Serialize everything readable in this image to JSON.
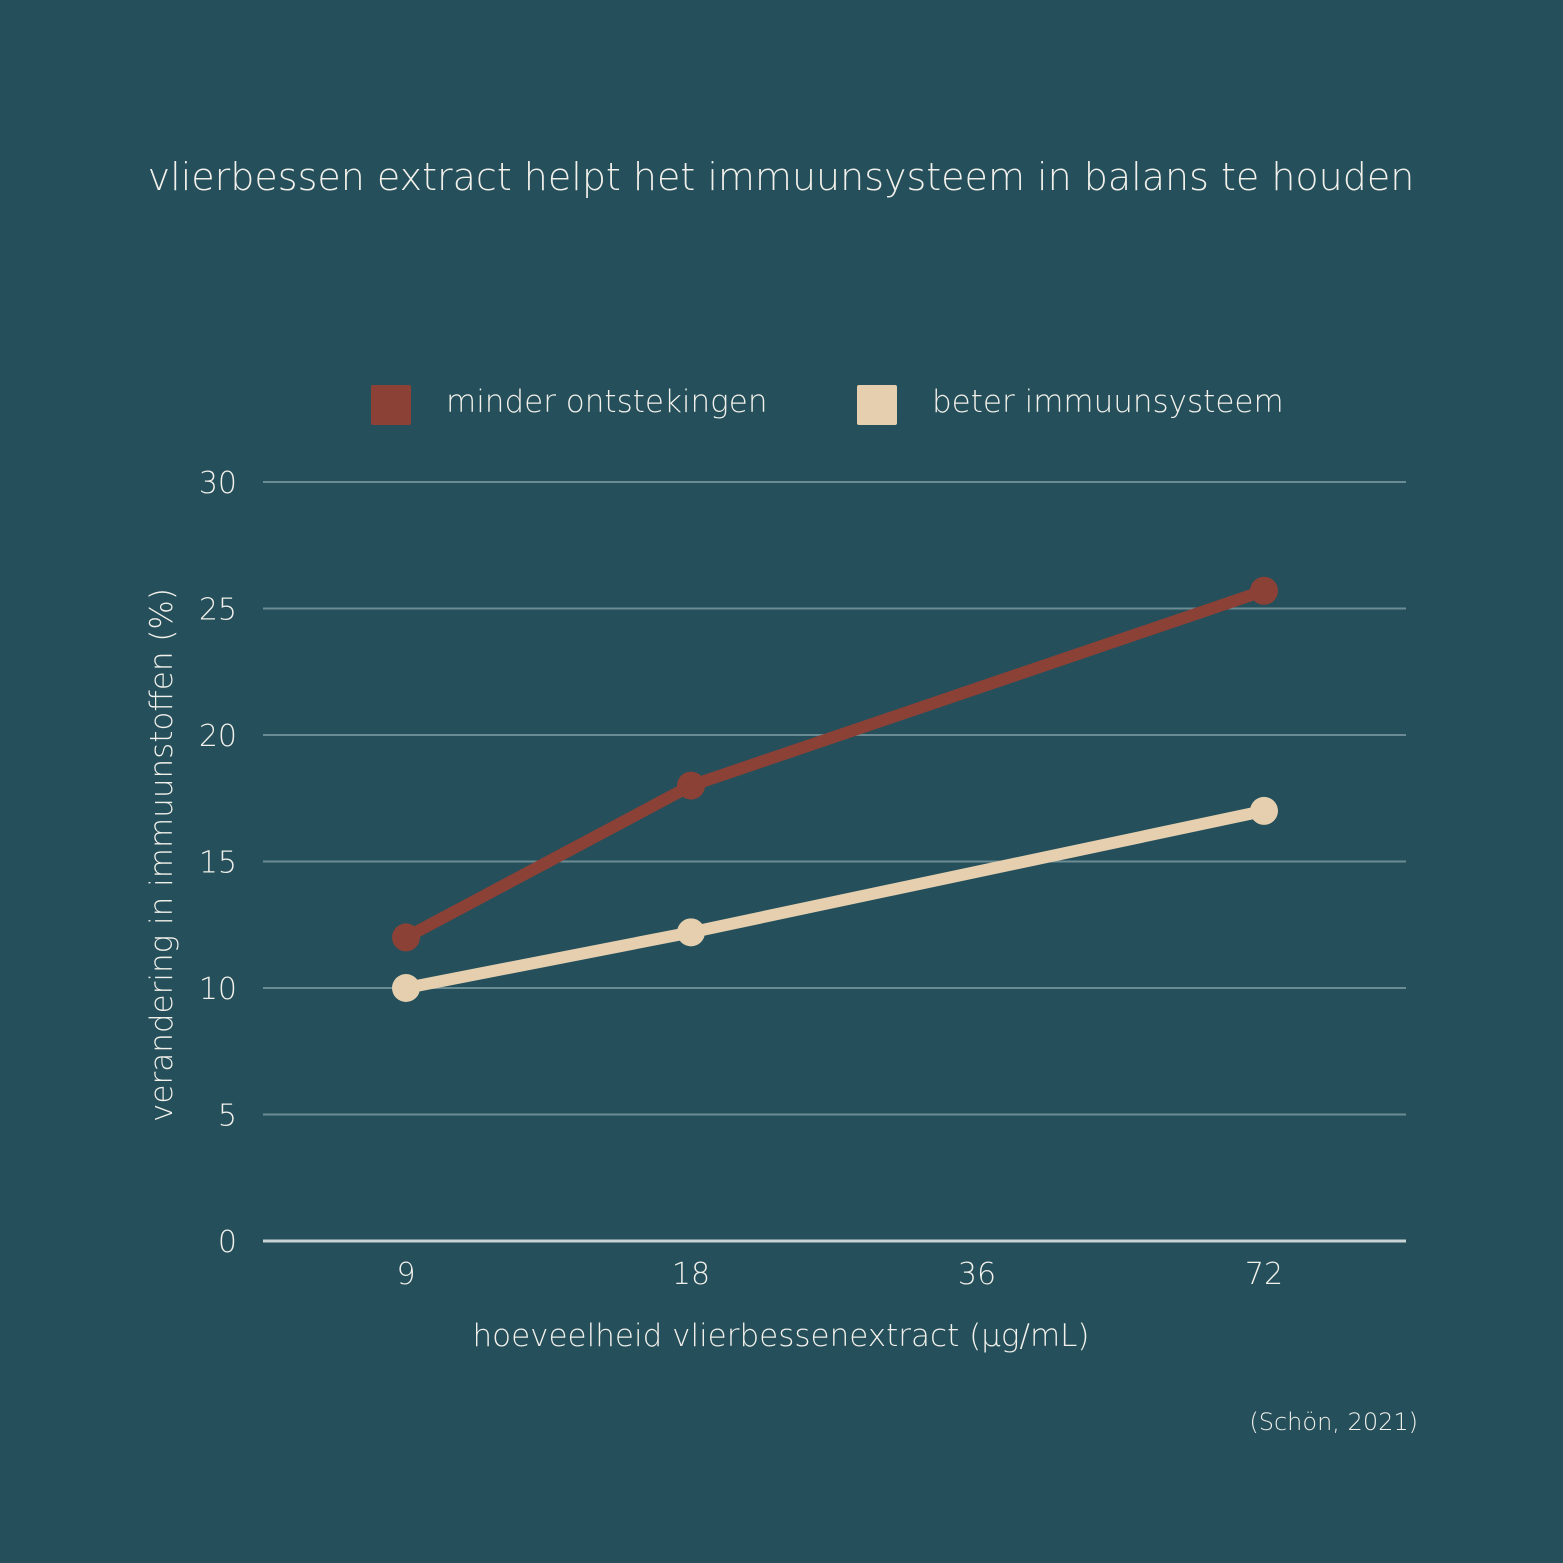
{
  "chart_data": {
    "type": "line",
    "title": "vlierbessen extract helpt het immuunsysteem in balans te houden",
    "xlabel": "hoeveelheid vlierbessenextract (µg/mL)",
    "ylabel": "verandering in immuunstoffen (%)",
    "categories": [
      "9",
      "18",
      "36",
      "72"
    ],
    "ylim": [
      0,
      30
    ],
    "yticks": [
      "0",
      "5",
      "10",
      "15",
      "20",
      "25",
      "30"
    ],
    "grid": true,
    "legend_position": "top",
    "series": [
      {
        "name": "minder ontstekingen",
        "color": "#8c4136",
        "points": [
          {
            "x": "9",
            "y": 12
          },
          {
            "x": "18",
            "y": 18
          },
          {
            "x": "72",
            "y": 25.7
          }
        ]
      },
      {
        "name": "beter immuunsysteem",
        "color": "#e6cfae",
        "points": [
          {
            "x": "9",
            "y": 10
          },
          {
            "x": "18",
            "y": 12.2
          },
          {
            "x": "72",
            "y": 17
          }
        ]
      }
    ],
    "source": "(Schön, 2021)"
  },
  "colors": {
    "background": "#244f5b",
    "grid": "#6b8c94",
    "text": "#f2f0ea"
  }
}
